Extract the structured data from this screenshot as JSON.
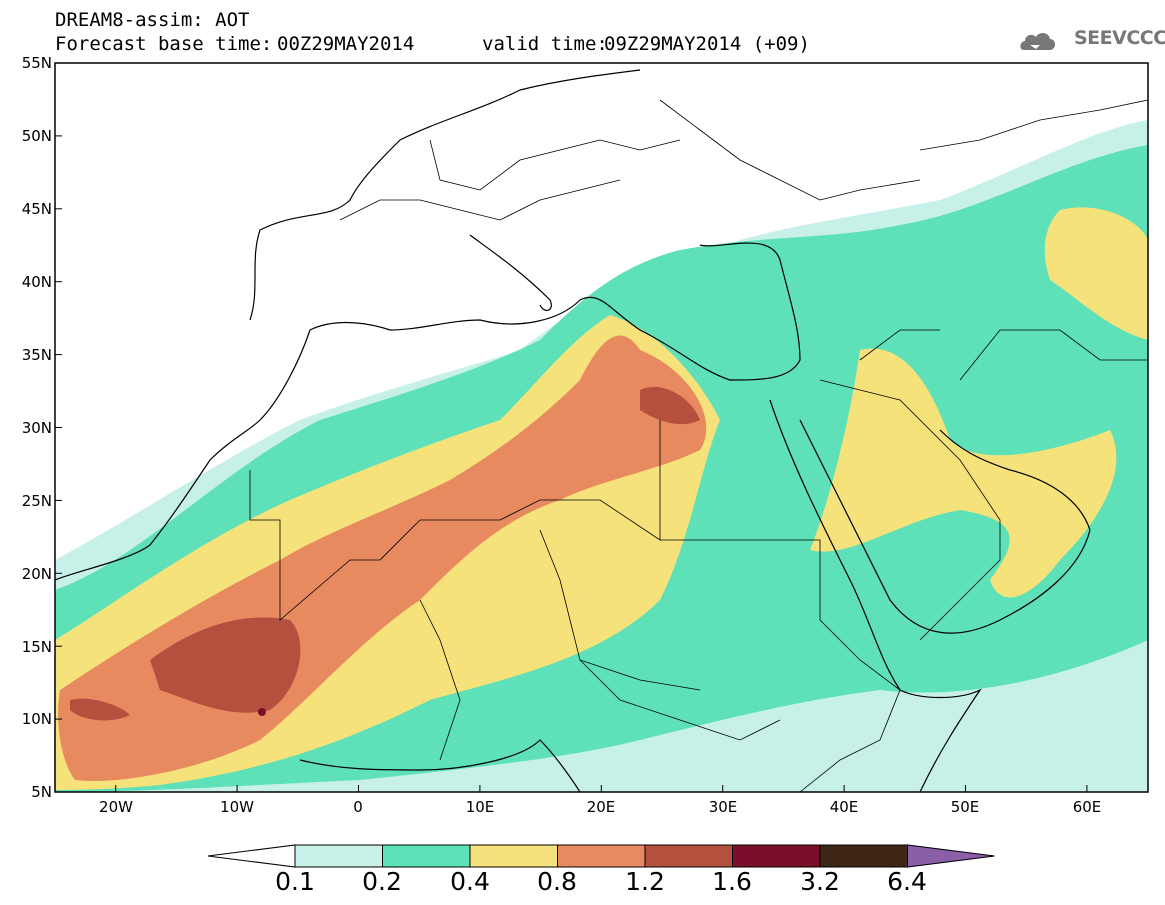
{
  "title": "DREAM8-assim: AOT",
  "forecast": {
    "base_label": "Forecast base time:",
    "base_value": "00Z29MAY2014",
    "valid_label": "valid time:",
    "valid_value": "09Z29MAY2014 (+09)"
  },
  "logo": {
    "text": "SEEVCCC",
    "icon": "cloud-icon"
  },
  "axes": {
    "lat_labels": [
      "55N",
      "50N",
      "45N",
      "40N",
      "35N",
      "30N",
      "25N",
      "20N",
      "15N",
      "10N",
      "5N"
    ],
    "lon_labels": [
      "20W",
      "10W",
      "0",
      "10E",
      "20E",
      "30E",
      "40E",
      "50E",
      "60E"
    ]
  },
  "legend": {
    "labels": [
      "0.1",
      "0.2",
      "0.4",
      "0.8",
      "1.2",
      "1.6",
      "3.2",
      "6.4"
    ],
    "colors": [
      "#ffffff",
      "#c6f0e8",
      "#5ee0b8",
      "#f5e27a",
      "#e88a60",
      "#b5503f",
      "#7a0f2b",
      "#3e2614",
      "#8a5fa8"
    ]
  },
  "chart_data": {
    "type": "heatmap",
    "title": "DREAM8-assim: AOT",
    "variable": "AOT",
    "lat_range": [
      5,
      55
    ],
    "lon_range": [
      -25,
      65
    ],
    "bins": [
      0.1,
      0.2,
      0.4,
      0.8,
      1.2,
      1.6,
      3.2,
      6.4
    ]
  }
}
